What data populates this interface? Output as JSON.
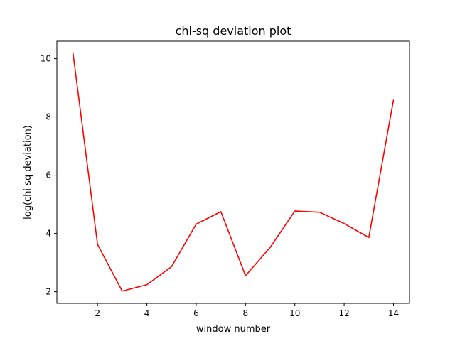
{
  "chart_data": {
    "type": "line",
    "title": "chi-sq deviation plot",
    "xlabel": "window number",
    "ylabel": "log(chi sq deviation)",
    "xlim": [
      0.35,
      14.65
    ],
    "ylim": [
      1.6,
      10.6
    ],
    "xticks": [
      2,
      4,
      6,
      8,
      10,
      12,
      14
    ],
    "yticks": [
      2,
      4,
      6,
      8,
      10
    ],
    "grid": false,
    "series": [
      {
        "color": "#ff0000",
        "x": [
          1,
          2,
          3,
          4,
          5,
          6,
          7,
          8,
          9,
          10,
          11,
          12,
          13,
          14
        ],
        "y": [
          10.22,
          3.62,
          2.02,
          2.24,
          2.86,
          4.32,
          4.75,
          2.55,
          3.52,
          4.77,
          4.73,
          4.34,
          3.86,
          8.58
        ]
      }
    ]
  }
}
